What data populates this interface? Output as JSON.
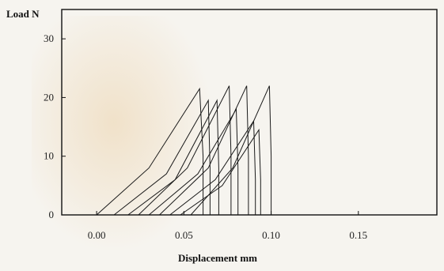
{
  "chart_data": {
    "type": "line",
    "title": "",
    "xlabel": "Displacement mm",
    "ylabel": "Load N",
    "xlim": [
      -0.02,
      0.195
    ],
    "ylim": [
      0,
      35
    ],
    "grid": false,
    "x_ticks": [
      {
        "value": 0.0,
        "label": "0.00"
      },
      {
        "value": 0.05,
        "label": "0.05"
      },
      {
        "value": 0.1,
        "label": "0.10"
      },
      {
        "value": 0.15,
        "label": "0.15"
      }
    ],
    "y_ticks": [
      {
        "value": 0,
        "label": "0"
      },
      {
        "value": 10,
        "label": "10"
      },
      {
        "value": 20,
        "label": "20"
      },
      {
        "value": 30,
        "label": "30"
      }
    ],
    "series": [
      {
        "x": [
          0.0,
          0.03,
          0.059,
          0.061,
          0.061
        ],
        "y": [
          0,
          8,
          21.5,
          10,
          0
        ]
      },
      {
        "x": [
          0.01,
          0.04,
          0.064,
          0.065,
          0.065
        ],
        "y": [
          0,
          7,
          19.5,
          8,
          0
        ]
      },
      {
        "x": [
          0.018,
          0.045,
          0.069,
          0.07,
          0.07
        ],
        "y": [
          0,
          6,
          19.5,
          8,
          0
        ]
      },
      {
        "x": [
          0.024,
          0.052,
          0.076,
          0.077,
          0.077
        ],
        "y": [
          0,
          8,
          22.0,
          10,
          0
        ]
      },
      {
        "x": [
          0.03,
          0.058,
          0.08,
          0.081,
          0.081
        ],
        "y": [
          0,
          7,
          18.0,
          8,
          0
        ]
      },
      {
        "x": [
          0.036,
          0.064,
          0.086,
          0.087,
          0.087
        ],
        "y": [
          0,
          8,
          22.0,
          10,
          0
        ]
      },
      {
        "x": [
          0.042,
          0.068,
          0.09,
          0.091,
          0.091
        ],
        "y": [
          0,
          6,
          16.0,
          6,
          0
        ]
      },
      {
        "x": [
          0.048,
          0.072,
          0.093,
          0.094,
          0.094
        ],
        "y": [
          0,
          5,
          14.5,
          6,
          0
        ]
      },
      {
        "x": [
          0.054,
          0.078,
          0.099,
          0.1,
          0.1
        ],
        "y": [
          0,
          8,
          22.0,
          10,
          0
        ]
      }
    ]
  }
}
